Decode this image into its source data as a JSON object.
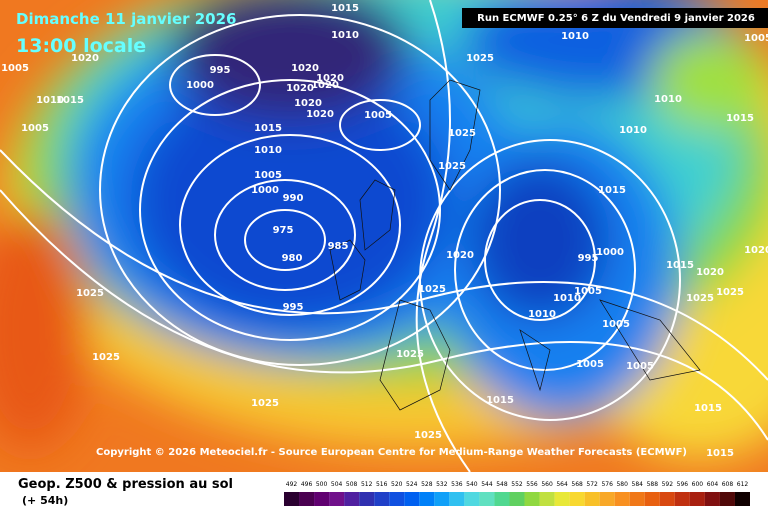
{
  "header": {
    "date": "Dimanche 11 janvier 2026",
    "time": "13:00 locale",
    "run": "Run ECMWF 0.25° 6 Z du Vendredi 9 janvier 2026"
  },
  "copyright": "Copyright © 2026 Meteociel.fr - Source European Centre for Medium-Range Weather Forecasts (ECMWF)",
  "footer": {
    "title": "Geop. Z500 & pression au sol",
    "lead": "(+ 54h)"
  },
  "scale": {
    "ticks": [
      492,
      496,
      500,
      504,
      508,
      512,
      516,
      520,
      524,
      528,
      532,
      536,
      540,
      544,
      548,
      552,
      556,
      560,
      564,
      568,
      572,
      576,
      580,
      584,
      588,
      592,
      596,
      600,
      604,
      608,
      612
    ],
    "colors": [
      "#2a0030",
      "#4a0050",
      "#600070",
      "#70108a",
      "#5020a0",
      "#3030b0",
      "#2040c8",
      "#1050e0",
      "#0060f0",
      "#0080f8",
      "#10a0f8",
      "#30c0f0",
      "#50d8e0",
      "#60e0c0",
      "#50d890",
      "#60d060",
      "#90d840",
      "#c0e040",
      "#e8e838",
      "#f8d830",
      "#f8c028",
      "#f8a828",
      "#f89020",
      "#f07818",
      "#e86010",
      "#d84810",
      "#c03010",
      "#a82010",
      "#801010",
      "#500808",
      "#100000"
    ]
  },
  "isobars": [
    "1005",
    "1020",
    "995",
    "1000",
    "1015",
    "1010",
    "1005",
    "1015",
    "1020",
    "1020",
    "1020",
    "1020",
    "1020",
    "1020",
    "1005",
    "1010",
    "1005",
    "1000",
    "990",
    "975",
    "980",
    "985",
    "995",
    "1025",
    "1010",
    "1025",
    "1025",
    "1010",
    "1010",
    "1015",
    "1020",
    "1015",
    "1025",
    "1000",
    "995",
    "1010",
    "1005",
    "1010",
    "1005",
    "1025",
    "1025",
    "1025",
    "1025",
    "1015",
    "1005",
    "1005",
    "1015",
    "1025",
    "1015",
    "1015",
    "1020",
    "1025",
    "1025",
    "1020",
    "1005",
    "1010",
    "1015"
  ]
}
